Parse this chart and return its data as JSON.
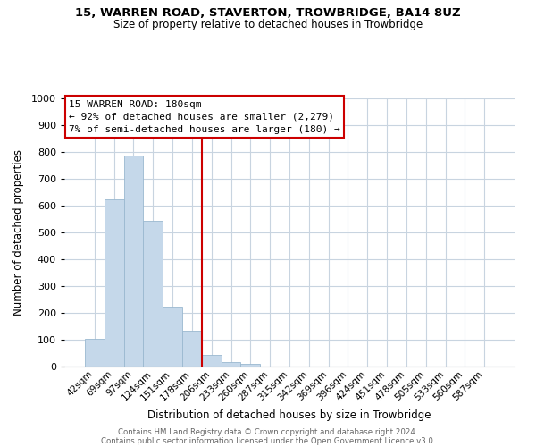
{
  "title": "15, WARREN ROAD, STAVERTON, TROWBRIDGE, BA14 8UZ",
  "subtitle": "Size of property relative to detached houses in Trowbridge",
  "xlabel": "Distribution of detached houses by size in Trowbridge",
  "ylabel": "Number of detached properties",
  "bar_labels": [
    "42sqm",
    "69sqm",
    "97sqm",
    "124sqm",
    "151sqm",
    "178sqm",
    "206sqm",
    "233sqm",
    "260sqm",
    "287sqm",
    "315sqm",
    "342sqm",
    "369sqm",
    "396sqm",
    "424sqm",
    "451sqm",
    "478sqm",
    "505sqm",
    "533sqm",
    "560sqm",
    "587sqm"
  ],
  "bar_values": [
    103,
    622,
    787,
    544,
    222,
    133,
    45,
    18,
    10,
    0,
    0,
    0,
    0,
    0,
    0,
    0,
    0,
    0,
    0,
    0,
    0
  ],
  "bar_color": "#c5d8ea",
  "bar_edge_color": "#9ab8d0",
  "vline_color": "#cc0000",
  "vline_index": 5.5,
  "annotation_title": "15 WARREN ROAD: 180sqm",
  "annotation_line1": "← 92% of detached houses are smaller (2,279)",
  "annotation_line2": "7% of semi-detached houses are larger (180) →",
  "annotation_box_facecolor": "#ffffff",
  "annotation_box_edgecolor": "#cc0000",
  "ylim": [
    0,
    1000
  ],
  "yticks": [
    0,
    100,
    200,
    300,
    400,
    500,
    600,
    700,
    800,
    900,
    1000
  ],
  "footer_line1": "Contains HM Land Registry data © Crown copyright and database right 2024.",
  "footer_line2": "Contains public sector information licensed under the Open Government Licence v3.0.",
  "background_color": "#ffffff",
  "grid_color": "#c8d4e0"
}
